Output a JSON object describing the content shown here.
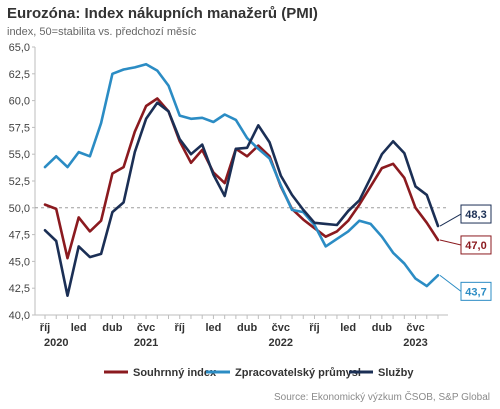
{
  "title": "Eurozóna: Index nákupních manažerů (PMI)",
  "subtitle": "index, 50=stabilita vs. předchozí měsíc",
  "source": "Source: Ekonomický výzkum ČSOB, S&P Global",
  "chart_data": {
    "type": "line",
    "title": "Eurozóna: Index nákupních manažerů (PMI)",
    "subtitle": "index, 50=stabilita vs. předchozí měsíc",
    "ylim": [
      40,
      65
    ],
    "yticks": [
      "40,0",
      "42,5",
      "45,0",
      "47,5",
      "50,0",
      "52,5",
      "55,0",
      "57,5",
      "60,0",
      "62,5",
      "65,0"
    ],
    "reference_line": 50,
    "xticks": [
      {
        "i": 0,
        "label": "říj"
      },
      {
        "i": 3,
        "label": "led"
      },
      {
        "i": 6,
        "label": "dub"
      },
      {
        "i": 9,
        "label": "čvc"
      },
      {
        "i": 12,
        "label": "říj"
      },
      {
        "i": 15,
        "label": "led"
      },
      {
        "i": 18,
        "label": "dub"
      },
      {
        "i": 21,
        "label": "čvc"
      },
      {
        "i": 24,
        "label": "říj"
      },
      {
        "i": 27,
        "label": "led"
      },
      {
        "i": 30,
        "label": "dub"
      },
      {
        "i": 33,
        "label": "čvc"
      }
    ],
    "years": [
      {
        "i": 1,
        "label": "2020"
      },
      {
        "i": 9,
        "label": "2021"
      },
      {
        "i": 21,
        "label": "2022"
      },
      {
        "i": 33,
        "label": "2023"
      }
    ],
    "grid": false,
    "legend": "bottom",
    "series": [
      {
        "name": "Souhrnný index",
        "color": "#8b1a1f",
        "values": [
          50.3,
          49.9,
          45.3,
          49.1,
          47.8,
          48.8,
          53.2,
          53.8,
          57.1,
          59.5,
          60.2,
          59.0,
          56.2,
          54.2,
          55.4,
          53.3,
          52.3,
          55.5,
          54.8,
          55.8,
          54.8,
          52.0,
          49.9,
          48.9,
          48.1,
          47.3,
          47.8,
          48.8,
          50.3,
          52.0,
          53.7,
          54.1,
          52.8,
          50.0,
          48.6,
          47.0
        ],
        "end_label": "47,0"
      },
      {
        "name": "Zpracovatelský průmysl",
        "color": "#2b8cc4",
        "values": [
          53.8,
          54.8,
          53.8,
          55.2,
          54.8,
          57.9,
          62.5,
          62.9,
          63.1,
          63.4,
          62.8,
          61.4,
          58.6,
          58.3,
          58.4,
          58.0,
          58.7,
          58.2,
          56.5,
          55.5,
          54.6,
          52.1,
          49.8,
          49.6,
          48.4,
          46.4,
          47.1,
          47.8,
          48.8,
          48.5,
          47.3,
          45.8,
          44.8,
          43.4,
          42.7,
          43.7
        ],
        "end_label": "43,7"
      },
      {
        "name": "Služby",
        "color": "#1b2f55",
        "values": [
          47.9,
          46.9,
          41.8,
          46.4,
          45.4,
          45.7,
          49.6,
          50.5,
          55.2,
          58.3,
          59.8,
          59.0,
          56.4,
          55.0,
          55.9,
          53.1,
          51.1,
          55.5,
          55.6,
          57.7,
          56.1,
          53.0,
          51.2,
          49.8,
          48.6,
          48.5,
          48.4,
          49.7,
          50.7,
          52.8,
          55.0,
          56.2,
          55.1,
          52.0,
          51.2,
          48.3
        ],
        "end_label": "48,3"
      }
    ]
  }
}
